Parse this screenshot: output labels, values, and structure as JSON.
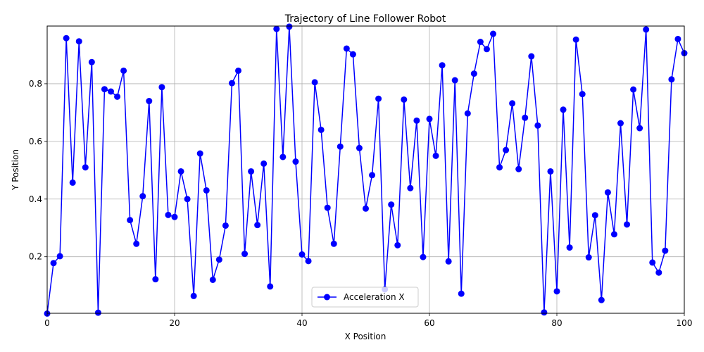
{
  "chart_data": {
    "type": "line",
    "title": "Trajectory of Line Follower Robot",
    "xlabel": "X Position",
    "ylabel": "Y Position",
    "xlim": [
      0,
      100
    ],
    "ylim": [
      0.004,
      1.0
    ],
    "xticks": [
      0,
      20,
      40,
      60,
      80,
      100
    ],
    "yticks": [
      0.2,
      0.4,
      0.6,
      0.8
    ],
    "grid": true,
    "legend_position": "bottom-center",
    "series": [
      {
        "name": "Acceleration X",
        "color": "#0000ff",
        "marker": "circle",
        "x": [
          0,
          1,
          2,
          3,
          4,
          5,
          6,
          7,
          8,
          9,
          10,
          11,
          12,
          13,
          14,
          15,
          16,
          17,
          18,
          19,
          20,
          21,
          22,
          23,
          24,
          25,
          26,
          27,
          28,
          29,
          30,
          31,
          32,
          33,
          34,
          35,
          36,
          37,
          38,
          39,
          40,
          41,
          42,
          43,
          44,
          45,
          46,
          47,
          48,
          49,
          50,
          51,
          52,
          53,
          54,
          55,
          56,
          57,
          58,
          59,
          60,
          61,
          62,
          63,
          64,
          65,
          66,
          67,
          68,
          69,
          70,
          71,
          72,
          73,
          74,
          75,
          76,
          77,
          78,
          79,
          80,
          81,
          82,
          83,
          84,
          85,
          86,
          87,
          88,
          89,
          90,
          91,
          92,
          93,
          94,
          95,
          96,
          97,
          98,
          99,
          100
        ],
        "values": [
          0.003,
          0.178,
          0.202,
          0.958,
          0.457,
          0.947,
          0.51,
          0.875,
          0.006,
          0.781,
          0.773,
          0.755,
          0.845,
          0.327,
          0.245,
          0.41,
          0.74,
          0.122,
          0.788,
          0.345,
          0.338,
          0.496,
          0.4,
          0.064,
          0.558,
          0.43,
          0.12,
          0.19,
          0.308,
          0.802,
          0.845,
          0.21,
          0.496,
          0.31,
          0.523,
          0.097,
          0.99,
          0.546,
          0.998,
          0.53,
          0.208,
          0.185,
          0.805,
          0.64,
          0.37,
          0.245,
          0.582,
          0.922,
          0.902,
          0.577,
          0.367,
          0.483,
          0.748,
          0.087,
          0.381,
          0.24,
          0.745,
          0.438,
          0.672,
          0.199,
          0.678,
          0.55,
          0.864,
          0.184,
          0.812,
          0.072,
          0.697,
          0.835,
          0.945,
          0.92,
          0.973,
          0.51,
          0.57,
          0.732,
          0.504,
          0.682,
          0.895,
          0.655,
          0.007,
          0.496,
          0.08,
          0.71,
          0.232,
          0.953,
          0.764,
          0.198,
          0.344,
          0.05,
          0.423,
          0.278,
          0.663,
          0.312,
          0.78,
          0.646,
          0.988,
          0.18,
          0.145,
          0.221,
          0.815,
          0.955,
          0.906
        ]
      }
    ]
  }
}
